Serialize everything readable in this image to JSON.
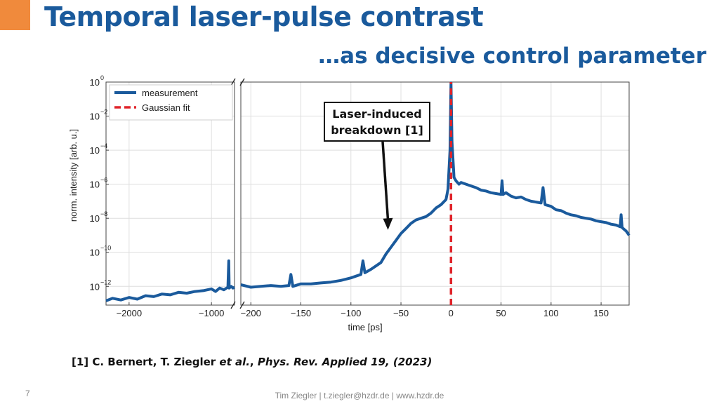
{
  "slide": {
    "title": "Temporal laser-pulse contrast",
    "subtitle": "…as decisive control parameter",
    "accent_color": "#f08a3c",
    "title_color": "#1a5a9c",
    "reference": {
      "prefix": "[1] C. Bernert, T. Ziegler ",
      "etal": "et al.",
      "sep": ", ",
      "journal": "Phys. Rev. Applied 19, (2023)"
    },
    "page_number": "7",
    "footer": "Tim Ziegler | t.ziegler@hzdr.de | www.hzdr.de"
  },
  "chart_data": {
    "type": "line",
    "xlabel": "time [ps]",
    "ylabel": "norm. intensity [arb. u.]",
    "yscale": "log",
    "ylim_exponent": [
      -13.1,
      0
    ],
    "yticks": [
      {
        "exp": 0,
        "label": "0"
      },
      {
        "exp": -2,
        "label": "−2"
      },
      {
        "exp": -4,
        "label": "−4"
      },
      {
        "exp": -6,
        "label": "−6"
      },
      {
        "exp": -8,
        "label": "−8"
      },
      {
        "exp": -10,
        "label": "−10"
      },
      {
        "exp": -12,
        "label": "−12"
      }
    ],
    "broken_axis": true,
    "left_panel": {
      "xlim": [
        -2280,
        -720
      ],
      "xticks": [
        -2000,
        -1000
      ],
      "xtick_labels": [
        "−2000",
        "−1000"
      ]
    },
    "right_panel": {
      "xlim": [
        -210,
        178
      ],
      "xticks": [
        -200,
        -150,
        -100,
        -50,
        0,
        50,
        100,
        150
      ],
      "xtick_labels": [
        "−200",
        "−150",
        "−100",
        "−50",
        "0",
        "50",
        "100",
        "150"
      ]
    },
    "series": [
      {
        "name": "measurement",
        "color": "#1a5a9c",
        "style": "solid",
        "left_points": [
          [
            -2280,
            -12.85
          ],
          [
            -2200,
            -12.7
          ],
          [
            -2100,
            -12.8
          ],
          [
            -2000,
            -12.65
          ],
          [
            -1900,
            -12.75
          ],
          [
            -1800,
            -12.55
          ],
          [
            -1700,
            -12.6
          ],
          [
            -1600,
            -12.45
          ],
          [
            -1500,
            -12.5
          ],
          [
            -1400,
            -12.35
          ],
          [
            -1300,
            -12.4
          ],
          [
            -1200,
            -12.3
          ],
          [
            -1100,
            -12.25
          ],
          [
            -1000,
            -12.15
          ],
          [
            -950,
            -12.3
          ],
          [
            -900,
            -12.1
          ],
          [
            -850,
            -12.2
          ],
          [
            -800,
            -12.05
          ],
          [
            -790,
            -10.5
          ],
          [
            -785,
            -12.1
          ],
          [
            -760,
            -12.0
          ],
          [
            -740,
            -12.1
          ],
          [
            -720,
            -12.05
          ]
        ],
        "right_points": [
          [
            -210,
            -11.9
          ],
          [
            -200,
            -12.05
          ],
          [
            -190,
            -12.0
          ],
          [
            -180,
            -11.95
          ],
          [
            -170,
            -12.0
          ],
          [
            -162,
            -11.95
          ],
          [
            -160,
            -11.3
          ],
          [
            -158,
            -12.0
          ],
          [
            -150,
            -11.85
          ],
          [
            -140,
            -11.85
          ],
          [
            -130,
            -11.8
          ],
          [
            -120,
            -11.75
          ],
          [
            -110,
            -11.65
          ],
          [
            -100,
            -11.5
          ],
          [
            -90,
            -11.3
          ],
          [
            -88,
            -10.5
          ],
          [
            -86,
            -11.2
          ],
          [
            -80,
            -11.0
          ],
          [
            -75,
            -10.8
          ],
          [
            -70,
            -10.6
          ],
          [
            -65,
            -10.1
          ],
          [
            -60,
            -9.7
          ],
          [
            -55,
            -9.3
          ],
          [
            -50,
            -8.9
          ],
          [
            -45,
            -8.6
          ],
          [
            -40,
            -8.3
          ],
          [
            -35,
            -8.1
          ],
          [
            -30,
            -8.0
          ],
          [
            -25,
            -7.9
          ],
          [
            -20,
            -7.7
          ],
          [
            -15,
            -7.4
          ],
          [
            -10,
            -7.2
          ],
          [
            -5,
            -6.9
          ],
          [
            -3,
            -6.3
          ],
          [
            -1,
            -4.0
          ],
          [
            0,
            -0.05
          ],
          [
            1,
            -3.5
          ],
          [
            3,
            -5.6
          ],
          [
            5,
            -5.8
          ],
          [
            8,
            -6.0
          ],
          [
            10,
            -5.9
          ],
          [
            15,
            -6.0
          ],
          [
            20,
            -6.1
          ],
          [
            25,
            -6.2
          ],
          [
            30,
            -6.35
          ],
          [
            35,
            -6.4
          ],
          [
            40,
            -6.5
          ],
          [
            45,
            -6.55
          ],
          [
            50,
            -6.6
          ],
          [
            51,
            -5.8
          ],
          [
            52,
            -6.6
          ],
          [
            55,
            -6.5
          ],
          [
            60,
            -6.7
          ],
          [
            65,
            -6.8
          ],
          [
            70,
            -6.75
          ],
          [
            75,
            -6.9
          ],
          [
            80,
            -7.0
          ],
          [
            85,
            -7.05
          ],
          [
            90,
            -7.1
          ],
          [
            92,
            -6.2
          ],
          [
            94,
            -7.2
          ],
          [
            100,
            -7.3
          ],
          [
            105,
            -7.5
          ],
          [
            110,
            -7.55
          ],
          [
            115,
            -7.7
          ],
          [
            120,
            -7.8
          ],
          [
            125,
            -7.85
          ],
          [
            130,
            -7.95
          ],
          [
            135,
            -8.0
          ],
          [
            140,
            -8.05
          ],
          [
            145,
            -8.15
          ],
          [
            150,
            -8.2
          ],
          [
            155,
            -8.25
          ],
          [
            160,
            -8.35
          ],
          [
            165,
            -8.4
          ],
          [
            169,
            -8.5
          ],
          [
            170,
            -7.8
          ],
          [
            171,
            -8.55
          ],
          [
            175,
            -8.75
          ],
          [
            178,
            -9.0
          ]
        ]
      },
      {
        "name": "Gaussian fit",
        "color": "#e0242a",
        "style": "dashed",
        "right_points": [
          [
            0,
            -13.1
          ],
          [
            0,
            0
          ]
        ]
      }
    ],
    "annotations": [
      {
        "text_lines": [
          "Laser-induced",
          "breakdown [1]"
        ],
        "points_to": {
          "x": -63,
          "exp": -8.6
        }
      }
    ]
  }
}
